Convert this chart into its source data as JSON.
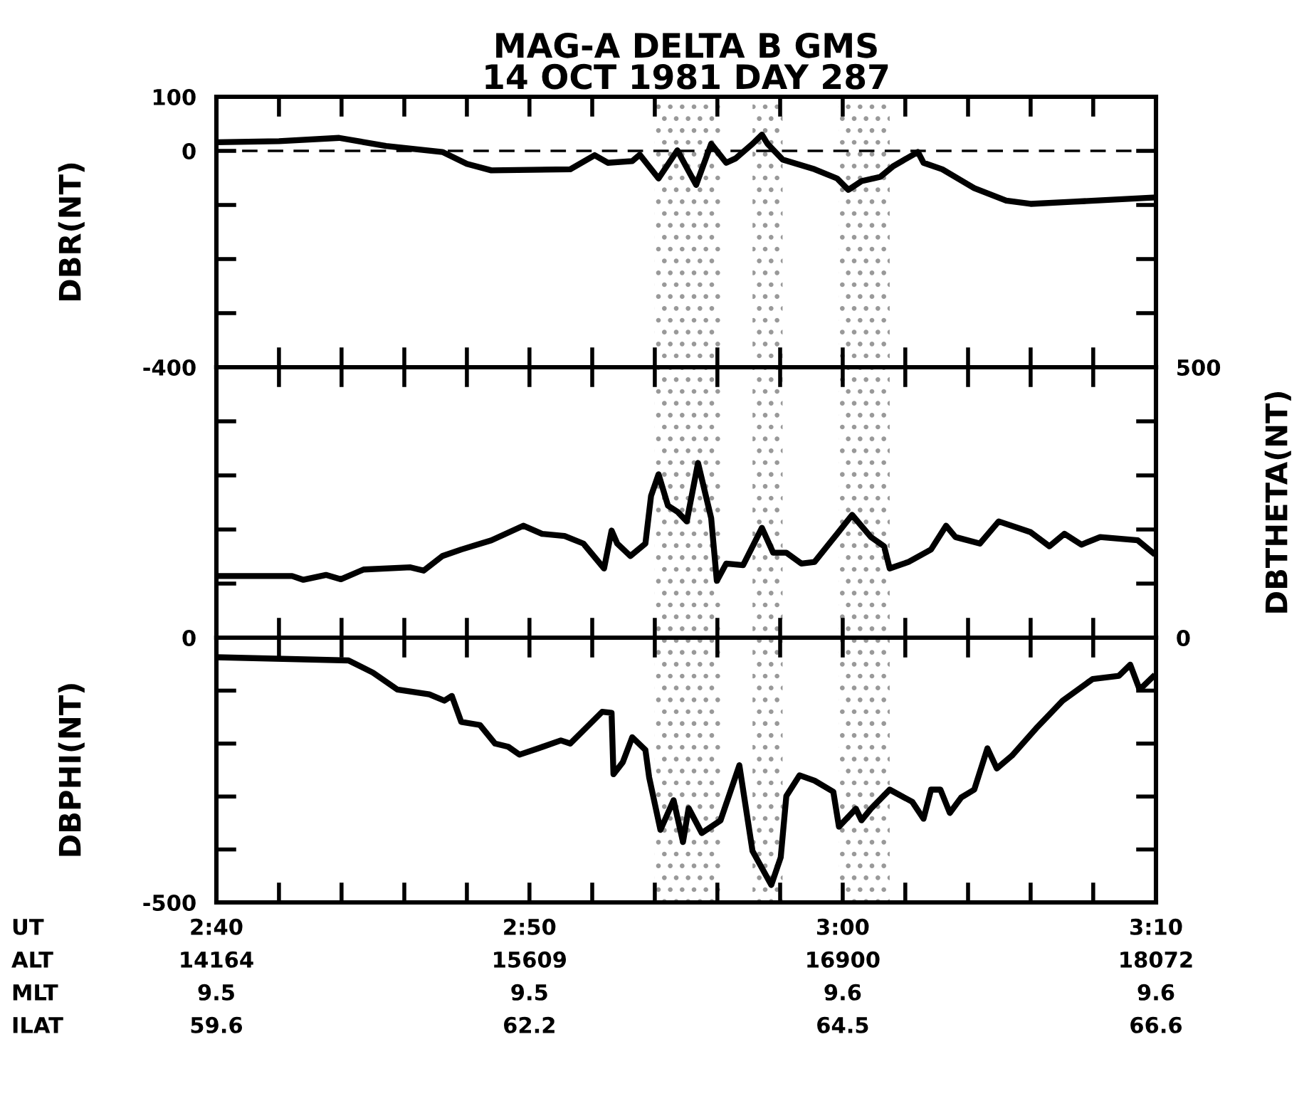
{
  "chart_data": [
    {
      "type": "line",
      "title": "MAG-A DELTA B GMS\n14 OCT 1981 DAY 287",
      "ylabel": "DBR(NT)",
      "xlim": [
        2.6667,
        3.1667
      ],
      "ylim": [
        -400,
        100
      ],
      "xticks": [
        {
          "value": 2.6667,
          "label": null
        },
        {
          "value": 2.7,
          "label": null
        },
        {
          "value": 2.7333,
          "label": null
        },
        {
          "value": 2.7667,
          "label": null
        },
        {
          "value": 2.8,
          "label": null
        },
        {
          "value": 2.8333,
          "label": null
        },
        {
          "value": 2.8667,
          "label": null
        },
        {
          "value": 2.9,
          "label": null
        },
        {
          "value": 2.9333,
          "label": null
        },
        {
          "value": 2.9667,
          "label": null
        },
        {
          "value": 3.0,
          "label": null
        },
        {
          "value": 3.0333,
          "label": null
        },
        {
          "value": 3.0667,
          "label": null
        },
        {
          "value": 3.1,
          "label": null
        },
        {
          "value": 3.1333,
          "label": null
        },
        {
          "value": 3.1667,
          "label": null
        }
      ],
      "yticks": [
        -400,
        {
          "value": -300,
          "label": null
        },
        {
          "value": -200,
          "label": null
        },
        {
          "value": -100,
          "label": null
        },
        0,
        100
      ],
      "tick_labels": "y",
      "line_style": "solid",
      "marker": "none",
      "ref_lines": [
        {
          "axis": "y",
          "value": 0,
          "color": "#000000",
          "line_style": "dashed"
        }
      ],
      "bands": [
        {
          "axis": "x",
          "from": 2.9,
          "to": 2.935,
          "color": "#999999"
        },
        {
          "axis": "x",
          "from": 2.952,
          "to": 2.968,
          "color": "#999999"
        },
        {
          "axis": "x",
          "from": 2.998,
          "to": 3.025,
          "color": "#999999"
        }
      ],
      "series": [
        {
          "color": "#000000",
          "x": [
            2.667,
            2.7,
            2.732,
            2.757,
            2.787,
            2.8,
            2.813,
            2.855,
            2.868,
            2.875,
            2.888,
            2.892,
            2.902,
            2.912,
            2.922,
            2.93,
            2.938,
            2.943,
            2.952,
            2.957,
            2.96,
            2.968,
            2.985,
            2.997,
            3.003,
            3.01,
            3.02,
            3.027,
            3.04,
            3.043,
            3.053,
            3.07,
            3.087,
            3.1,
            3.123,
            3.1667
          ],
          "values": [
            16,
            18,
            24,
            9,
            -2,
            -24,
            -36,
            -34,
            -8,
            -22,
            -19,
            -7,
            -51,
            1,
            -63,
            13,
            -22,
            -14,
            13,
            30,
            13,
            -16,
            -34,
            -51,
            -72,
            -56,
            -48,
            -28,
            -2,
            -22,
            -34,
            -69,
            -92,
            -98,
            -94,
            -86
          ]
        }
      ]
    },
    {
      "type": "line",
      "y2label": "DBTHETA(NT)",
      "xlim": [
        2.6667,
        3.1667
      ],
      "y2lim": [
        0,
        500
      ],
      "xticks": [
        {
          "value": 2.6667,
          "label": null
        },
        {
          "value": 2.7,
          "label": null
        },
        {
          "value": 2.7333,
          "label": null
        },
        {
          "value": 2.7667,
          "label": null
        },
        {
          "value": 2.8,
          "label": null
        },
        {
          "value": 2.8333,
          "label": null
        },
        {
          "value": 2.8667,
          "label": null
        },
        {
          "value": 2.9,
          "label": null
        },
        {
          "value": 2.9333,
          "label": null
        },
        {
          "value": 2.9667,
          "label": null
        },
        {
          "value": 3.0,
          "label": null
        },
        {
          "value": 3.0333,
          "label": null
        },
        {
          "value": 3.0667,
          "label": null
        },
        {
          "value": 3.1,
          "label": null
        },
        {
          "value": 3.1333,
          "label": null
        },
        {
          "value": 3.1667,
          "label": null
        }
      ],
      "y2ticks": [
        0,
        {
          "value": 100,
          "label": null
        },
        {
          "value": 200,
          "label": null
        },
        {
          "value": 300,
          "label": null
        },
        {
          "value": 400,
          "label": null
        },
        500
      ],
      "tick_labels": "y",
      "line_style": "solid",
      "marker": "none",
      "bands": [
        {
          "axis": "x",
          "from": 2.9,
          "to": 2.935,
          "color": "#999999"
        },
        {
          "axis": "x",
          "from": 2.952,
          "to": 2.968,
          "color": "#999999"
        },
        {
          "axis": "x",
          "from": 2.998,
          "to": 3.025,
          "color": "#999999"
        }
      ],
      "series": [
        {
          "color": "#000000",
          "axis": "y2",
          "x": [
            2.667,
            2.707,
            2.713,
            2.725,
            2.733,
            2.745,
            2.77,
            2.777,
            2.787,
            2.797,
            2.813,
            2.83,
            2.84,
            2.852,
            2.862,
            2.873,
            2.877,
            2.88,
            2.887,
            2.895,
            2.898,
            2.902,
            2.907,
            2.912,
            2.917,
            2.923,
            2.93,
            2.933,
            2.938,
            2.947,
            2.957,
            2.963,
            2.97,
            2.978,
            2.985,
            2.997,
            3.005,
            3.015,
            3.022,
            3.025,
            3.035,
            3.047,
            3.055,
            3.06,
            3.073,
            3.083,
            3.1,
            3.11,
            3.118,
            3.127,
            3.137,
            3.157,
            3.165
          ],
          "values": [
            114,
            114,
            107,
            116,
            108,
            126,
            130,
            124,
            151,
            163,
            180,
            207,
            192,
            188,
            174,
            128,
            198,
            174,
            151,
            174,
            262,
            302,
            244,
            233,
            215,
            323,
            221,
            105,
            137,
            134,
            203,
            157,
            157,
            137,
            140,
            192,
            227,
            186,
            169,
            128,
            140,
            163,
            207,
            186,
            174,
            215,
            195,
            169,
            192,
            172,
            186,
            180,
            157
          ]
        }
      ]
    },
    {
      "type": "line",
      "ylabel": "DBPHI(NT)",
      "xlim": [
        2.6667,
        3.1667
      ],
      "ylim": [
        -500,
        0
      ],
      "xticks": [
        {
          "value": 2.6667,
          "label": "2:40"
        },
        {
          "value": 2.7,
          "label": null
        },
        {
          "value": 2.7333,
          "label": null
        },
        {
          "value": 2.7667,
          "label": null
        },
        {
          "value": 2.8,
          "label": null
        },
        {
          "value": 2.8333,
          "label": "2:50"
        },
        {
          "value": 2.8667,
          "label": null
        },
        {
          "value": 2.9,
          "label": null
        },
        {
          "value": 2.9333,
          "label": null
        },
        {
          "value": 2.9667,
          "label": null
        },
        {
          "value": 3.0,
          "label": "3:00"
        },
        {
          "value": 3.0333,
          "label": null
        },
        {
          "value": 3.0667,
          "label": null
        },
        {
          "value": 3.1,
          "label": null
        },
        {
          "value": 3.1333,
          "label": null
        },
        {
          "value": 3.1667,
          "label": "3:10"
        }
      ],
      "yticks": [
        -500,
        {
          "value": -400,
          "label": null
        },
        {
          "value": -300,
          "label": null
        },
        {
          "value": -200,
          "label": null
        },
        {
          "value": -100,
          "label": null
        },
        0
      ],
      "line_style": "solid",
      "marker": "none",
      "annotations": [
        "UT",
        "ALT",
        "MLT",
        "ILAT",
        "14164",
        "15609",
        "16900",
        "18072",
        "9.5",
        "9.5",
        "9.6",
        "9.6",
        "59.6",
        "62.2",
        "64.5",
        "66.6"
      ],
      "bands": [
        {
          "axis": "x",
          "from": 2.9,
          "to": 2.935,
          "color": "#999999"
        },
        {
          "axis": "x",
          "from": 2.952,
          "to": 2.968,
          "color": "#999999"
        },
        {
          "axis": "x",
          "from": 2.998,
          "to": 3.025,
          "color": "#999999"
        }
      ],
      "series": [
        {
          "color": "#000000",
          "x": [
            2.667,
            2.737,
            2.75,
            2.763,
            2.78,
            2.788,
            2.792,
            2.797,
            2.807,
            2.815,
            2.822,
            2.828,
            2.838,
            2.85,
            2.855,
            2.872,
            2.877,
            2.878,
            2.883,
            2.888,
            2.895,
            2.897,
            2.903,
            2.91,
            2.915,
            2.918,
            2.925,
            2.935,
            2.945,
            2.952,
            2.962,
            2.967,
            2.97,
            2.977,
            2.985,
            2.995,
            2.998,
            3.007,
            3.01,
            3.015,
            3.025,
            3.037,
            3.043,
            3.047,
            3.052,
            3.057,
            3.063,
            3.07,
            3.077,
            3.082,
            3.09,
            3.103,
            3.117,
            3.133,
            3.147,
            3.153,
            3.158,
            3.165
          ],
          "values": [
            -37,
            -43,
            -66,
            -98,
            -107,
            -119,
            -110,
            -159,
            -165,
            -200,
            -206,
            -221,
            -209,
            -194,
            -200,
            -140,
            -142,
            -258,
            -235,
            -188,
            -212,
            -264,
            -363,
            -307,
            -386,
            -322,
            -369,
            -345,
            -241,
            -403,
            -467,
            -415,
            -299,
            -260,
            -270,
            -291,
            -357,
            -323,
            -345,
            -323,
            -287,
            -310,
            -342,
            -287,
            -287,
            -331,
            -302,
            -287,
            -209,
            -247,
            -223,
            -171,
            -119,
            -78,
            -72,
            -51,
            -98,
            -74
          ]
        }
      ]
    }
  ]
}
